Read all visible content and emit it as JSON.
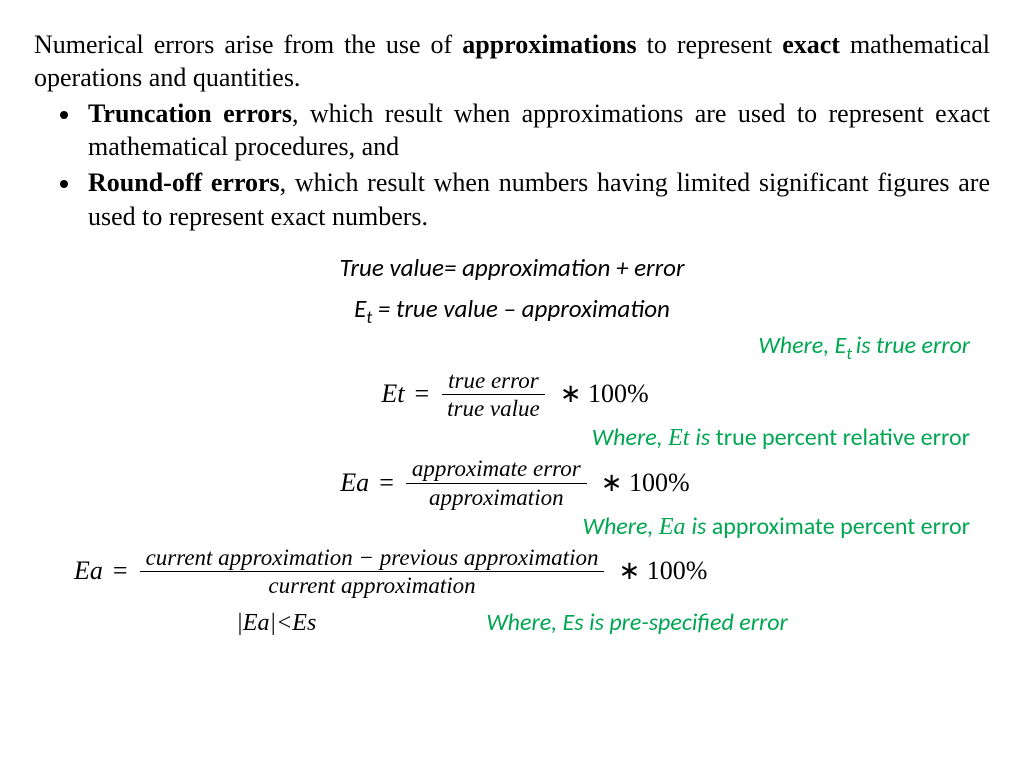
{
  "colors": {
    "accent": "#00a651",
    "text": "#000000",
    "bg": "#ffffff"
  },
  "intro": {
    "pre": "Numerical errors arise from the use of ",
    "b1": "approximations",
    "mid": " to represent ",
    "b2": "exact",
    "post": " mathematical operations and quantities."
  },
  "bullets": [
    {
      "bold": "Truncation errors",
      "text": ", which result when approximations are used to represent exact mathematical procedures, and"
    },
    {
      "bold": "Round-off errors",
      "text": ", which result when numbers having limited significant figures are used to represent exact numbers."
    }
  ],
  "eq1": "True value= approximation + error",
  "eq2_pre": "E",
  "eq2_sub": "t",
  "eq2_post": " = true value – approximation",
  "note1_pre": "Where, E",
  "note1_sub": "t ",
  "note1_post": "is true error",
  "et": {
    "lhs": "Et",
    "eq": " = ",
    "num": "true error",
    "den": "true value",
    "tail": "∗ 100%"
  },
  "note2_pre": "Where, ",
  "note2_var": "Et ",
  "note2_mid": " is ",
  "note2_plain": "true percent relative error",
  "ea1": {
    "lhs": "Ea",
    "eq": " = ",
    "num": "approximate error",
    "den": "approximation",
    "tail": "∗ 100%"
  },
  "note3_pre": "Where, ",
  "note3_var": "Ea ",
  "note3_mid": " is ",
  "note3_plain": "approximate percent error",
  "ea2": {
    "lhs": "Ea",
    "eq": " = ",
    "num": "current approximation − previous approximation",
    "den": "current approximation",
    "tail": "∗ 100%"
  },
  "final_lhs": "|Ea|<Es",
  "final_rhs": "Where, Es  is pre-specified error"
}
